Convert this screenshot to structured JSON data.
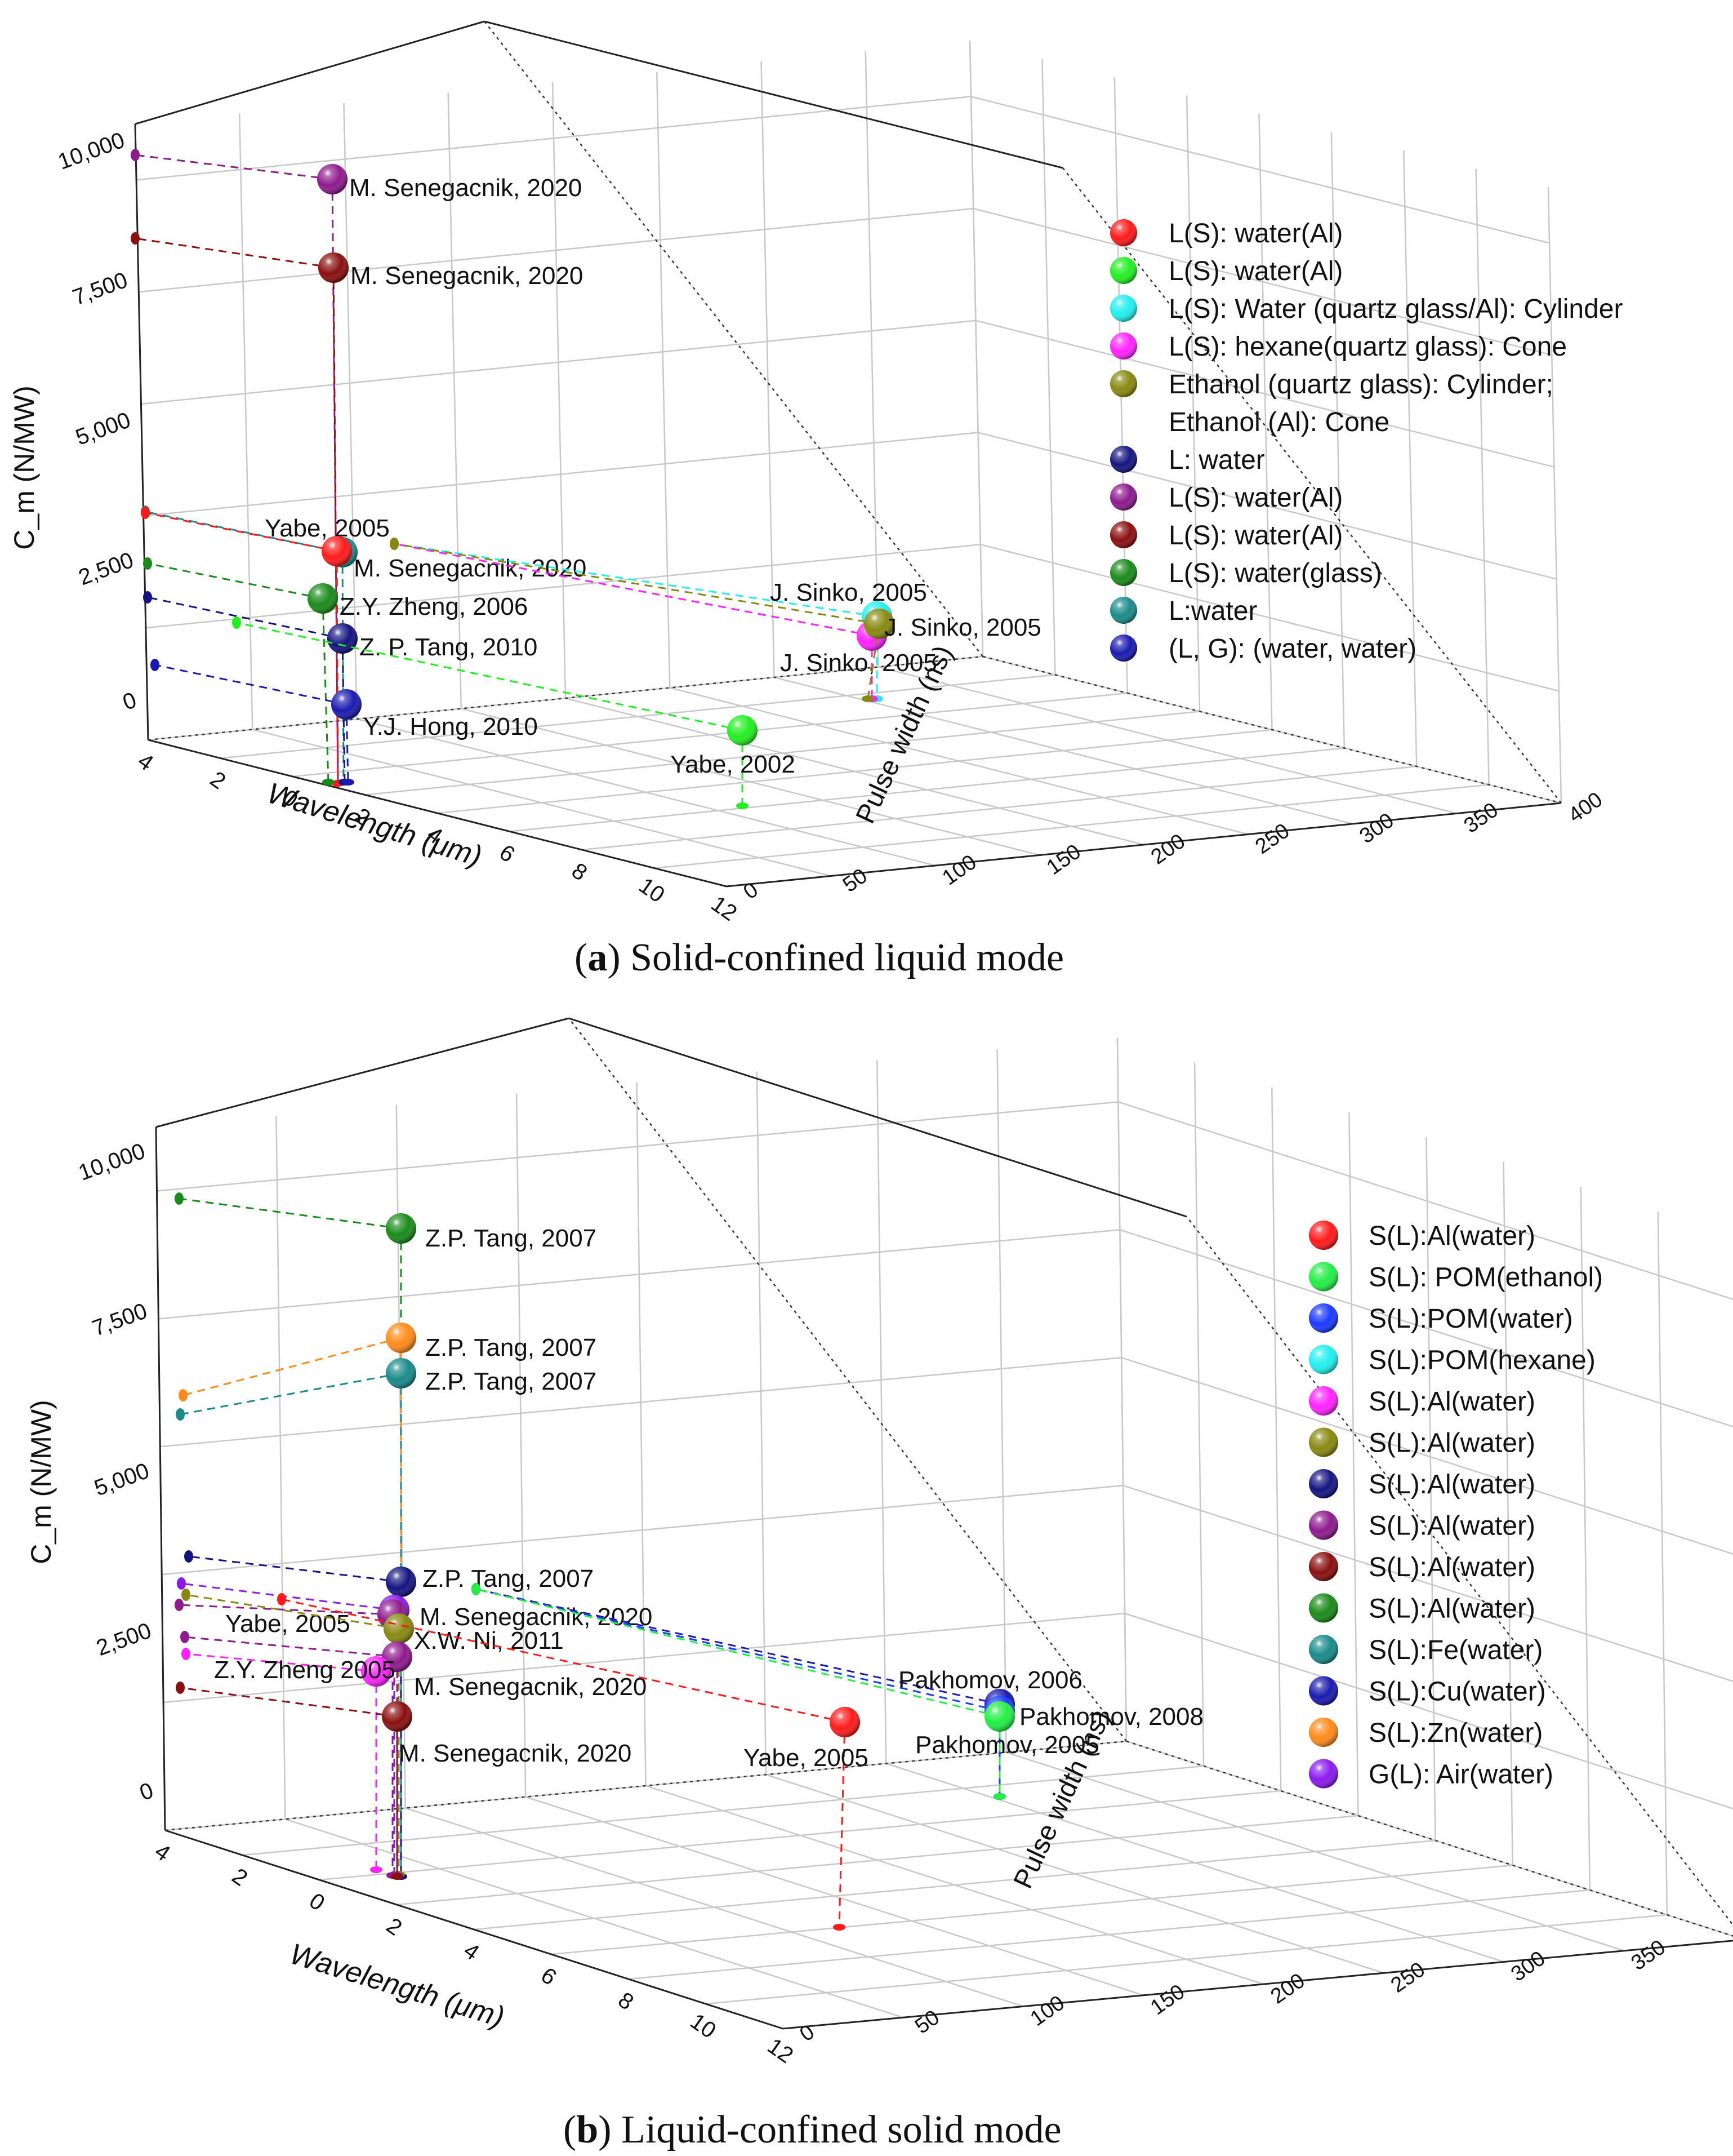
{
  "chart_data": [
    {
      "type": "scatter",
      "caption_letter": "a",
      "caption": "Solid-confined liquid mode",
      "xlabel": "Wavelength (μm)",
      "ylabel": "Pulse width (ns)",
      "zlabel": "C_m (N/MW)",
      "x_ticks": [
        "4",
        "2",
        "0",
        "2",
        "4",
        "6",
        "8",
        "10",
        "12"
      ],
      "y_ticks": [
        "0",
        "50",
        "100",
        "150",
        "200",
        "250",
        "300",
        "350",
        "400"
      ],
      "z_ticks": [
        "0",
        "2,500",
        "5,000",
        "7,500",
        "10,000"
      ],
      "xlim": [
        -4,
        12
      ],
      "ylim": [
        0,
        400
      ],
      "zlim": [
        0,
        11000
      ],
      "legend": [
        {
          "label": "L(S): water(Al)",
          "color": "#ff1a1a"
        },
        {
          "label": "L(S): water(Al)",
          "color": "#22ee22"
        },
        {
          "label": "L(S): Water (quartz glass/Al): Cylinder",
          "color": "#22eeee"
        },
        {
          "label": "L(S): hexane(quartz glass): Cone",
          "color": "#ff22ff"
        },
        {
          "label": "Ethanol (quartz glass): Cylinder;",
          "color": "#888811"
        },
        {
          "label": "Ethanol (Al): Cone",
          "color": null
        },
        {
          "label": "L: water",
          "color": "#141480"
        },
        {
          "label": "L(S): water(Al)",
          "color": "#8e1a8e"
        },
        {
          "label": "L(S): water(Al)",
          "color": "#8a0f0f"
        },
        {
          "label": "L(S): water(glass)",
          "color": "#1a8a1a"
        },
        {
          "label": "L:water",
          "color": "#1a8a8a"
        },
        {
          "label": "(L, G): (water, water)",
          "color": "#1a1ab0"
        }
      ],
      "points": [
        {
          "label": "M. Senegacnik, 2020",
          "x": 1.06,
          "y": 10,
          "z": 9800,
          "color": "#8e1a8e"
        },
        {
          "label": "M. Senegacnik, 2020",
          "x": 1.06,
          "y": 10,
          "z": 8300,
          "color": "#8a0f0f"
        },
        {
          "label": "Yabe, 2005",
          "x": 1.06,
          "y": 10,
          "z": 3000,
          "color": "#1a8a8a"
        },
        {
          "label": "M. Senegacnik, 2020",
          "x": 1.06,
          "y": 10,
          "z": 2850,
          "color": "#ff1a1a"
        },
        {
          "label": "Z.Y. Zheng, 2006",
          "x": 1.06,
          "y": 10,
          "z": 2000,
          "color": "#1a8a1a"
        },
        {
          "label": "Z. P. Tang, 2010",
          "x": 1.06,
          "y": 10,
          "z": 1300,
          "color": "#141480"
        },
        {
          "label": "Y.J. Hong, 2010",
          "x": 1.06,
          "y": 10,
          "z": 0,
          "color": "#1a1ab0"
        },
        {
          "label": "Yabe, 2002",
          "x": 10.6,
          "y": 100,
          "z": 0,
          "color": "#22ee22"
        },
        {
          "label": "J. Sinko, 2005",
          "x": 10.6,
          "y": 350,
          "z": 1550,
          "color": "#22eeee"
        },
        {
          "label": "J. Sinko, 2005",
          "x": 10.6,
          "y": 350,
          "z": 1350,
          "color": "#ff22ff"
        },
        {
          "label": "J. Sinko, 2005",
          "x": 10.6,
          "y": 350,
          "z": 1450,
          "color": "#888811"
        }
      ]
    },
    {
      "type": "scatter",
      "caption_letter": "b",
      "caption": "Liquid-confined solid mode",
      "xlabel": "Wavelength (μm)",
      "ylabel": "Pulse width (ns)",
      "zlabel": "C_m (N/MW)",
      "x_ticks": [
        "4",
        "2",
        "0",
        "2",
        "4",
        "6",
        "8",
        "10",
        "12"
      ],
      "y_ticks": [
        "0",
        "50",
        "100",
        "150",
        "200",
        "250",
        "300",
        "350",
        "400"
      ],
      "z_ticks": [
        "0",
        "2,500",
        "5,000",
        "7,500",
        "10,000"
      ],
      "xlim": [
        -4,
        12
      ],
      "ylim": [
        0,
        400
      ],
      "zlim": [
        0,
        11000
      ],
      "legend": [
        {
          "label": "S(L):Al(water)",
          "color": "#ff1a1a"
        },
        {
          "label": "S(L): POM(ethanol)",
          "color": "#22ee44"
        },
        {
          "label": "S(L):POM(water)",
          "color": "#1a3aff"
        },
        {
          "label": "S(L):POM(hexane)",
          "color": "#22eeee"
        },
        {
          "label": "S(L):Al(water)",
          "color": "#ff22ff"
        },
        {
          "label": "S(L):Al(water)",
          "color": "#888811"
        },
        {
          "label": "S(L):Al(water)",
          "color": "#141480"
        },
        {
          "label": "S(L):Al(water)",
          "color": "#8e1a8e"
        },
        {
          "label": "S(L):Al(water)",
          "color": "#8a0f0f"
        },
        {
          "label": "S(L):Al(water)",
          "color": "#1a8a1a"
        },
        {
          "label": "S(L):Fe(water)",
          "color": "#1a8a8a"
        },
        {
          "label": "S(L):Cu(water)",
          "color": "#1a1ab0"
        },
        {
          "label": "S(L):Zn(water)",
          "color": "#ff8a1a"
        },
        {
          "label": "G(L): Air(water)",
          "color": "#8a1aee"
        }
      ],
      "points": [
        {
          "label": "Z.P. Tang, 2007",
          "x": 1.06,
          "y": 10,
          "z": 9500,
          "color": "#1a8a1a"
        },
        {
          "label": "Z.P. Tang, 2007",
          "x": 1.06,
          "y": 10,
          "z": 7800,
          "color": "#ff8a1a"
        },
        {
          "label": "Z.P. Tang, 2007",
          "x": 1.06,
          "y": 10,
          "z": 7300,
          "color": "#1a8a8a"
        },
        {
          "label": "Z.P. Tang, 2007",
          "x": 1.06,
          "y": 10,
          "z": 3600,
          "color": "#141480"
        },
        {
          "label": "M. Senegacnik, 2020",
          "x": 1.06,
          "y": 10,
          "z": 3050,
          "color": "#8a1aee"
        },
        {
          "label": "Yabe, 2005",
          "x": 1.06,
          "y": 10,
          "z": 3000,
          "color": "#8e1a8e"
        },
        {
          "label": "X.W. Ni, 2011",
          "x": 1.06,
          "y": 10,
          "z": 2750,
          "color": "#888811"
        },
        {
          "label": "M. Senegacnik, 2020",
          "x": 1.06,
          "y": 10,
          "z": 2150,
          "color": "#8e1a8e"
        },
        {
          "label": "Z.Y. Zheng 2005",
          "x": 0.53,
          "y": 10,
          "z": 2000,
          "color": "#ff22ff"
        },
        {
          "label": "M. Senegacnik, 2020",
          "x": 1.06,
          "y": 10,
          "z": 1100,
          "color": "#8a0f0f"
        },
        {
          "label": "Yabe, 2005",
          "x": 10.6,
          "y": 100,
          "z": 1100,
          "color": "#ff1a1a"
        },
        {
          "label": "Pakhomov, 2006",
          "x": 10.6,
          "y": 350,
          "z": 1250,
          "color": "#1a1ab0"
        },
        {
          "label": "Pakhomov, 2008",
          "x": 10.6,
          "y": 350,
          "z": 1150,
          "color": "#1a3aff"
        },
        {
          "label": "Pakhomov, 2005",
          "x": 10.6,
          "y": 350,
          "z": 1050,
          "color": "#22ee44"
        }
      ]
    }
  ]
}
